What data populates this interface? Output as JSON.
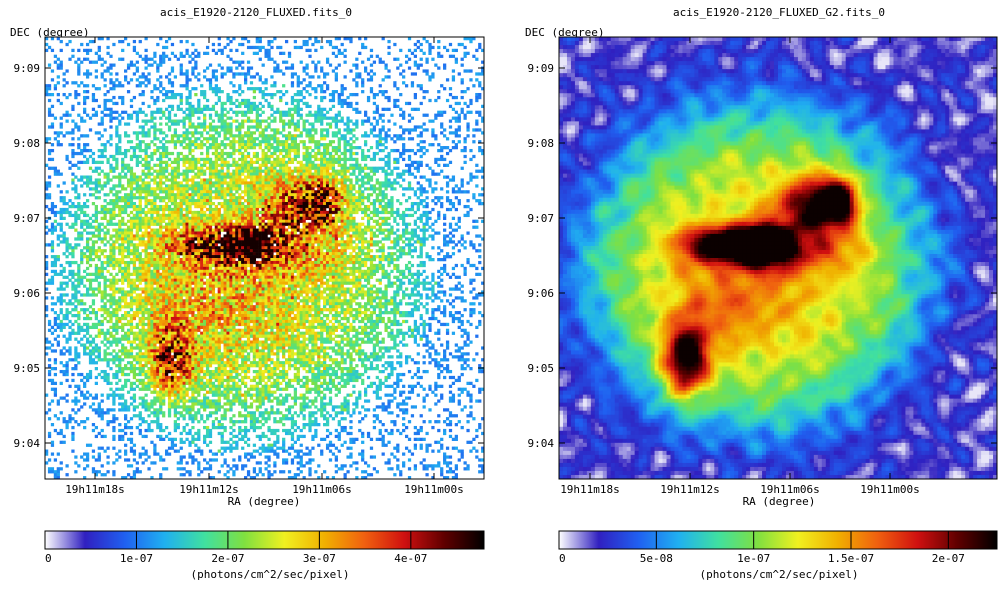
{
  "colors": {
    "background": "#ffffff",
    "colormap_stops": [
      "#ffffff",
      "#3020c0",
      "#2060f0",
      "#20b0f0",
      "#40e0a0",
      "#80e040",
      "#f0f020",
      "#f0b000",
      "#f06010",
      "#d01010",
      "#600000",
      "#000000"
    ]
  },
  "chart_data": [
    {
      "type": "heatmap",
      "title": "acis_E1920-2120_FLUXED.fits_0",
      "xlabel": "RA (degree)",
      "ylabel": "DEC (degree)",
      "x_ticks": [
        "19h11m18s",
        "19h11m12s",
        "19h11m06s",
        "19h11m00s"
      ],
      "y_ticks": [
        "9:09",
        "9:08",
        "9:07",
        "9:06",
        "9:05",
        "9:04"
      ],
      "colorbar": {
        "label": "(photons/cm^2/sec/pixel)",
        "ticks": [
          "0",
          "1e-07",
          "2e-07",
          "3e-07",
          "4e-07"
        ],
        "tick_values": [
          0,
          1e-07,
          2e-07,
          3e-07,
          4e-07
        ],
        "range": [
          0,
          4.8e-07
        ]
      },
      "style": "unsmoothed",
      "grid": false
    },
    {
      "type": "heatmap",
      "title": "acis_E1920-2120_FLUXED_G2.fits_0",
      "xlabel": "RA (degree)",
      "ylabel": "DEC (degree)",
      "x_ticks": [
        "19h11m18s",
        "19h11m12s",
        "19h11m06s",
        "19h11m00s"
      ],
      "y_ticks": [
        "9:09",
        "9:08",
        "9:07",
        "9:06",
        "9:05",
        "9:04"
      ],
      "colorbar": {
        "label": "(photons/cm^2/sec/pixel)",
        "ticks": [
          "0",
          "5e-08",
          "1e-07",
          "1.5e-07",
          "2e-07"
        ],
        "tick_values": [
          0,
          5e-08,
          1e-07,
          1.5e-07,
          2e-07
        ],
        "range": [
          0,
          2.25e-07
        ]
      },
      "style": "gaussian-smoothed",
      "grid": false
    }
  ]
}
